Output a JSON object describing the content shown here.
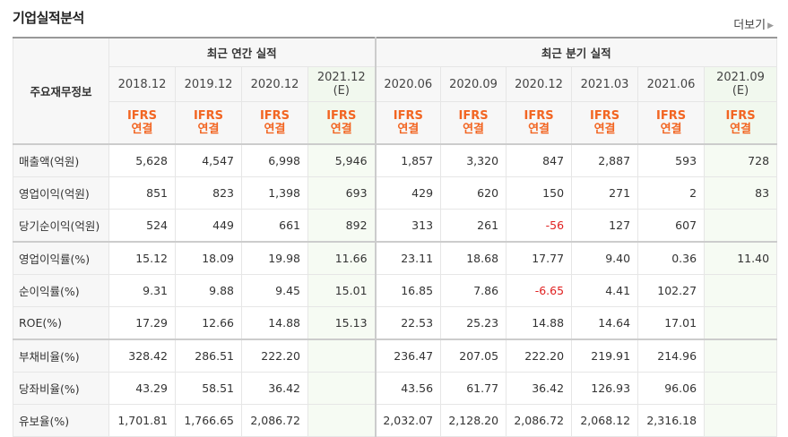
{
  "title": "기업실적분석",
  "more_label": "더보기",
  "header": {
    "row_label": "주요재무정보",
    "annual_label": "최근 연간 실적",
    "quarter_label": "최근 분기 실적",
    "periods": [
      {
        "date": "2018.12",
        "est": ""
      },
      {
        "date": "2019.12",
        "est": ""
      },
      {
        "date": "2020.12",
        "est": ""
      },
      {
        "date": "2021.12",
        "est": "(E)"
      },
      {
        "date": "2020.06",
        "est": ""
      },
      {
        "date": "2020.09",
        "est": ""
      },
      {
        "date": "2020.12",
        "est": ""
      },
      {
        "date": "2021.03",
        "est": ""
      },
      {
        "date": "2021.06",
        "est": ""
      },
      {
        "date": "2021.09",
        "est": "(E)"
      }
    ],
    "ifrs_top": "IFRS",
    "ifrs_bottom": "연결"
  },
  "rows": [
    {
      "label": "매출액(억원)",
      "values": [
        "5,628",
        "4,547",
        "6,998",
        "5,946",
        "1,857",
        "3,320",
        "847",
        "2,887",
        "593",
        "728"
      ]
    },
    {
      "label": "영업이익(억원)",
      "values": [
        "851",
        "823",
        "1,398",
        "693",
        "429",
        "620",
        "150",
        "271",
        "2",
        "83"
      ]
    },
    {
      "label": "당기순이익(억원)",
      "values": [
        "524",
        "449",
        "661",
        "892",
        "313",
        "261",
        "-56",
        "127",
        "607",
        ""
      ]
    },
    {
      "label": "영업이익률(%)",
      "values": [
        "15.12",
        "18.09",
        "19.98",
        "11.66",
        "23.11",
        "18.68",
        "17.77",
        "9.40",
        "0.36",
        "11.40"
      ]
    },
    {
      "label": "순이익률(%)",
      "values": [
        "9.31",
        "9.88",
        "9.45",
        "15.01",
        "16.85",
        "7.86",
        "-6.65",
        "4.41",
        "102.27",
        ""
      ]
    },
    {
      "label": "ROE(%)",
      "values": [
        "17.29",
        "12.66",
        "14.88",
        "15.13",
        "22.53",
        "25.23",
        "14.88",
        "14.64",
        "17.01",
        ""
      ]
    },
    {
      "label": "부채비율(%)",
      "values": [
        "328.42",
        "286.51",
        "222.20",
        "",
        "236.47",
        "207.05",
        "222.20",
        "219.91",
        "214.96",
        ""
      ]
    },
    {
      "label": "당좌비율(%)",
      "values": [
        "43.29",
        "58.51",
        "36.42",
        "",
        "43.56",
        "61.77",
        "36.42",
        "126.93",
        "96.06",
        ""
      ]
    },
    {
      "label": "유보율(%)",
      "values": [
        "1,701.81",
        "1,766.65",
        "2,086.72",
        "",
        "2,032.07",
        "2,128.20",
        "2,086.72",
        "2,068.12",
        "2,316.18",
        ""
      ]
    }
  ],
  "colors": {
    "ifrs": "#f26522",
    "negative": "#e02020",
    "estimate_bg": "#f1f8ee"
  }
}
